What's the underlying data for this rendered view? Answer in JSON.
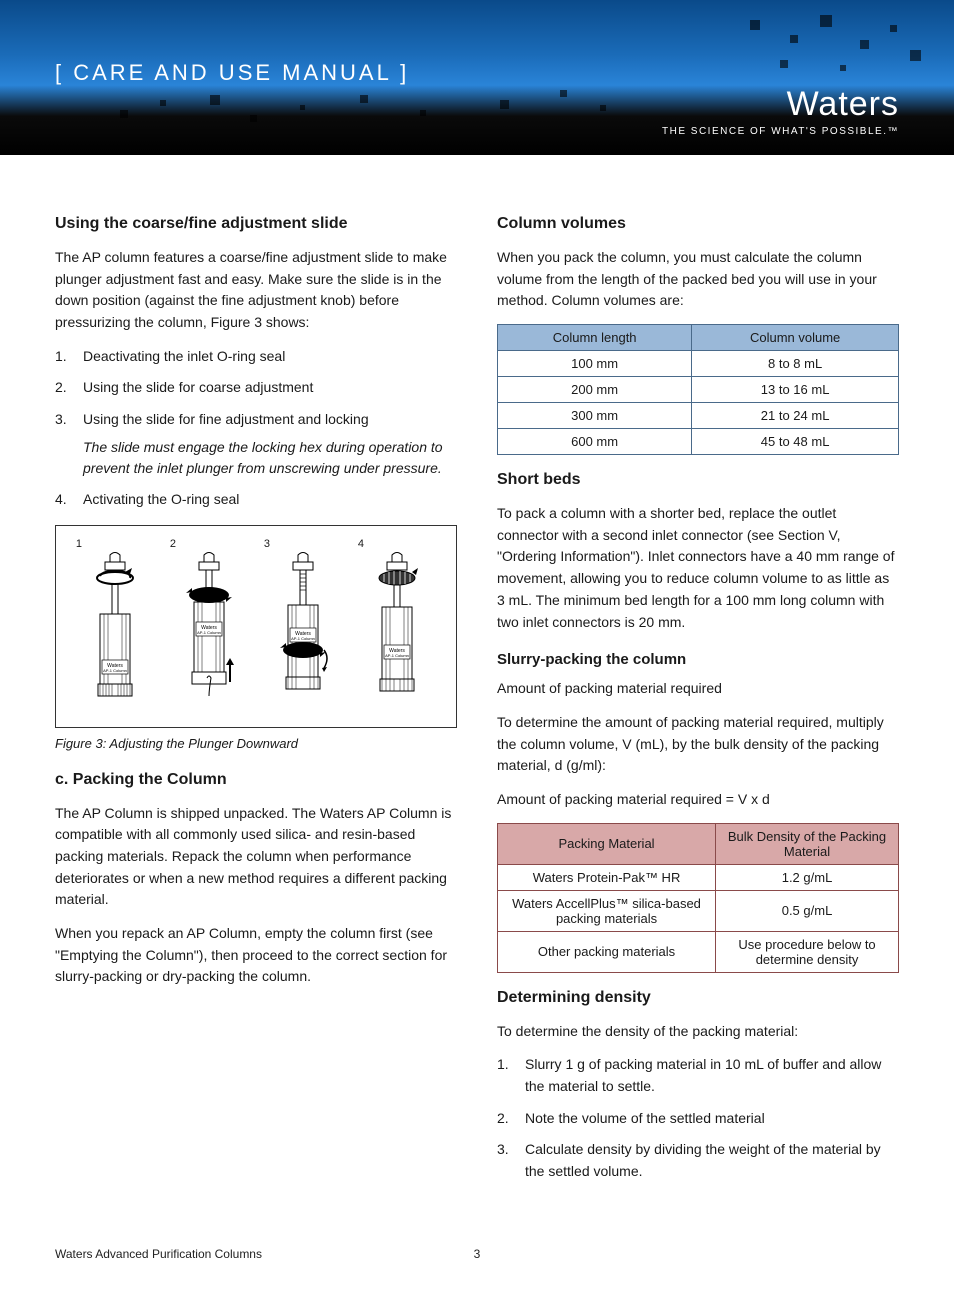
{
  "banner": {
    "title": "[ CARE AND USE MANUAL ]",
    "brand": "Waters",
    "tagline": "THE SCIENCE OF WHAT'S POSSIBLE.™",
    "bg_start": "#0a4a8a",
    "bg_mid": "#2a84d8",
    "bg_end": "#000000"
  },
  "left": {
    "h_adjust": "Using the coarse/fine adjustment slide",
    "p_adjust": "The AP column features a coarse/fine adjustment slide to make plunger adjustment fast and easy. Make sure the slide is in the down position (against the fine adjustment knob) before pressurizing the column, Figure 3 shows:",
    "adjust_list": [
      "Deactivating the inlet O-ring seal",
      "Using the slide for coarse adjustment",
      "Using the slide for fine adjustment and locking",
      "Activating the O-ring seal"
    ],
    "adjust_note": "The slide must engage the locking hex during operation to prevent the inlet plunger from unscrewing under pressure.",
    "fig_labels": [
      "1",
      "2",
      "3",
      "4"
    ],
    "fig_caption": "Figure 3: Adjusting the Plunger Downward",
    "h_pack": "c. Packing the Column",
    "p_pack1": "The AP Column is shipped unpacked. The Waters AP Column is compatible with all commonly used silica- and resin-based packing materials. Repack the column when performance deteriorates or when a new method requires a different packing material.",
    "p_pack2": "When you repack an AP Column, empty the column first (see \"Emptying the Column\"), then proceed to the correct section for slurry-packing or dry-packing the column."
  },
  "right": {
    "h_vol": "Column volumes",
    "p_vol": "When you pack the column, you must calculate the column volume from the length of the packed bed you will use in your method. Column volumes are:",
    "vol_table": {
      "header_bg": "#9ab8d8",
      "border_color": "#4a6a8a",
      "columns": [
        "Column length",
        "Column volume"
      ],
      "rows": [
        [
          "100 mm",
          "8 to 8 mL"
        ],
        [
          "200 mm",
          "13 to 16 mL"
        ],
        [
          "300 mm",
          "21 to 24 mL"
        ],
        [
          "600 mm",
          "45 to 48 mL"
        ]
      ]
    },
    "h_short": "Short beds",
    "p_short": "To pack a column with a shorter bed, replace the outlet connector with a second inlet connector (see Section V, \"Ordering Information\"). Inlet connectors have a 40 mm range of movement, allowing you to reduce column volume to as little as 3 mL. The minimum bed length for a 100 mm long column with two inlet connectors is 20 mm.",
    "h_slurry": "Slurry-packing the column",
    "p_amount_label": "Amount of packing material required",
    "p_amount": "To determine the amount of packing material required, multiply the column volume, V (mL), by the bulk density of the packing material, d (g/ml):",
    "p_formula": "Amount of packing material required = V x d",
    "mat_table": {
      "header_bg": "#d8a8a8",
      "border_color": "#8a4a4a",
      "columns": [
        "Packing Material",
        "Bulk Density of the Packing Material"
      ],
      "rows": [
        [
          "Waters Protein-Pak™ HR",
          "1.2 g/mL"
        ],
        [
          "Waters AccellPlus™ silica-based packing materials",
          "0.5 g/mL"
        ],
        [
          "Other packing materials",
          "Use procedure below to determine density"
        ]
      ]
    },
    "h_density": "Determining density",
    "p_density": "To determine the density of the packing material:",
    "density_list": [
      "Slurry 1 g of packing material in 10 mL of buffer and allow the material to settle.",
      "Note the volume of the settled material",
      "Calculate density by dividing the weight of the material by the settled volume."
    ]
  },
  "footer": {
    "left": "Waters Advanced Purification Columns",
    "page": "3"
  }
}
